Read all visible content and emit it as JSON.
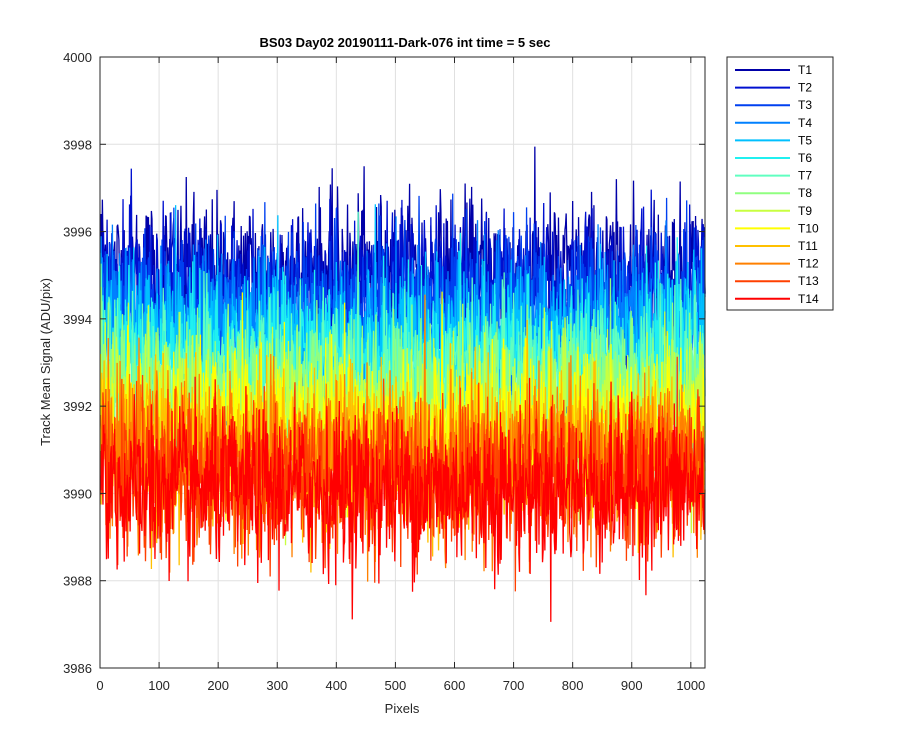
{
  "chart_data": {
    "type": "line",
    "title": "BS03 Day02 20190111-Dark-076 int time = 5 sec",
    "xlabel": "Pixels",
    "ylabel": "Track Mean Signal (ADU/pix)",
    "xlim": [
      0,
      1024
    ],
    "ylim": [
      3986,
      4000
    ],
    "xticks": [
      0,
      100,
      200,
      300,
      400,
      500,
      600,
      700,
      800,
      900,
      1000
    ],
    "yticks": [
      3986,
      3988,
      3990,
      3992,
      3994,
      3996,
      3998,
      4000
    ],
    "grid": true,
    "legend_position": "outside-top-right",
    "series": [
      {
        "name": "T1",
        "color": "#0000a8",
        "mean": 3995.0,
        "noise": 0.9
      },
      {
        "name": "T2",
        "color": "#0010d0",
        "mean": 3994.6,
        "noise": 0.9
      },
      {
        "name": "T3",
        "color": "#0040f0",
        "mean": 3994.2,
        "noise": 0.9
      },
      {
        "name": "T4",
        "color": "#0080ff",
        "mean": 3993.8,
        "noise": 0.9
      },
      {
        "name": "T5",
        "color": "#00c0ff",
        "mean": 3993.4,
        "noise": 0.9
      },
      {
        "name": "T6",
        "color": "#20f0f0",
        "mean": 3993.0,
        "noise": 0.9
      },
      {
        "name": "T7",
        "color": "#60ffc0",
        "mean": 3992.6,
        "noise": 0.9
      },
      {
        "name": "T8",
        "color": "#90ff80",
        "mean": 3992.2,
        "noise": 0.9
      },
      {
        "name": "T9",
        "color": "#c8ff40",
        "mean": 3991.8,
        "noise": 0.9
      },
      {
        "name": "T10",
        "color": "#ffff00",
        "mean": 3991.4,
        "noise": 0.9
      },
      {
        "name": "T11",
        "color": "#ffc000",
        "mean": 3991.0,
        "noise": 0.9
      },
      {
        "name": "T12",
        "color": "#ff8000",
        "mean": 3990.7,
        "noise": 0.9
      },
      {
        "name": "T13",
        "color": "#ff4000",
        "mean": 3990.4,
        "noise": 0.9
      },
      {
        "name": "T14",
        "color": "#ff0000",
        "mean": 3990.1,
        "noise": 0.9
      }
    ]
  }
}
